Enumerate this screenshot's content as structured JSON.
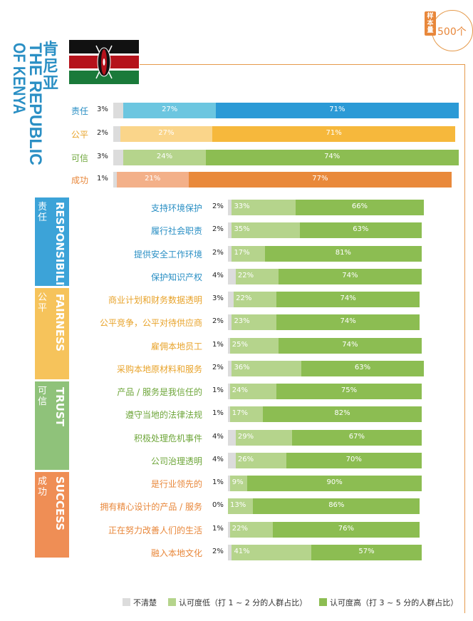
{
  "sample": {
    "label": "样本量",
    "count": "500个"
  },
  "title": {
    "cn": "肯尼亚",
    "en_line1": "THE REPUBLIC",
    "en_line2": "OF KENYA"
  },
  "colors": {
    "unclear": "#dcdcdc",
    "responsibility": "#2b9ad6",
    "responsibility_light": "#6cc6e0",
    "responsibility_cat": "#3ca3d8",
    "fairness": "#f6b83c",
    "fairness_light": "#fad58a",
    "fairness_cat": "#f6c35b",
    "trust": "#8cbd52",
    "trust_light": "#b5d48c",
    "trust_cat": "#8fc27a",
    "success": "#e9893b",
    "success_light": "#f3b089",
    "success_cat": "#ef8e55",
    "low": "#b5d48c",
    "high": "#8cbd52"
  },
  "chart_data": [
    {
      "type": "bar",
      "title": "肯尼亚 THE REPUBLIC OF KENYA",
      "stacked": true,
      "orientation": "horizontal",
      "categories": [
        "责任",
        "公平",
        "可信",
        "成功"
      ],
      "series": [
        {
          "name": "不清楚",
          "values": [
            3,
            2,
            3,
            1
          ]
        },
        {
          "name": "认可度低（打1～2分的人群占比）",
          "values": [
            27,
            27,
            24,
            21
          ]
        },
        {
          "name": "认可度高（打3～5分的人群占比）",
          "values": [
            71,
            71,
            74,
            77
          ]
        }
      ]
    },
    {
      "type": "bar",
      "stacked": true,
      "orientation": "horizontal",
      "groups": [
        {
          "name": "责任",
          "en": "RESPONSIBILITY",
          "items": [
            "支持环境保护",
            "履行社会职责",
            "提供安全工作环境",
            "保护知识产权"
          ]
        },
        {
          "name": "公平",
          "en": "FAIRNESS",
          "items": [
            "商业计划和财务数据透明",
            "公平竞争，公平对待供应商",
            "雇佣本地员工",
            "采购本地原材料和服务"
          ]
        },
        {
          "name": "可信",
          "en": "TRUST",
          "items": [
            "产品 / 服务是我信任的",
            "遵守当地的法律法规",
            "积极处理危机事件",
            "公司治理透明"
          ]
        },
        {
          "name": "成功",
          "en": "SUCCESS",
          "items": [
            "是行业领先的",
            "拥有精心设计的产品 / 服务",
            "正在努力改善人们的生活",
            "融入本地文化"
          ]
        }
      ],
      "categories": [
        "支持环境保护",
        "履行社会职责",
        "提供安全工作环境",
        "保护知识产权",
        "商业计划和财务数据透明",
        "公平竞争，公平对待供应商",
        "雇佣本地员工",
        "采购本地原材料和服务",
        "产品 / 服务是我信任的",
        "遵守当地的法律法规",
        "积极处理危机事件",
        "公司治理透明",
        "是行业领先的",
        "拥有精心设计的产品 / 服务",
        "正在努力改善人们的生活",
        "融入本地文化"
      ],
      "series": [
        {
          "name": "不清楚",
          "values": [
            2,
            2,
            2,
            4,
            3,
            2,
            1,
            2,
            1,
            1,
            4,
            4,
            1,
            0,
            1,
            2
          ]
        },
        {
          "name": "认可度低（打1～2分的人群占比）",
          "values": [
            33,
            35,
            17,
            22,
            22,
            23,
            25,
            36,
            24,
            17,
            29,
            26,
            9,
            13,
            22,
            41
          ]
        },
        {
          "name": "认可度高（打3～5分的人群占比）",
          "values": [
            66,
            63,
            81,
            74,
            74,
            74,
            74,
            63,
            75,
            82,
            67,
            70,
            90,
            86,
            76,
            57
          ]
        }
      ]
    }
  ],
  "legend": {
    "unclear": "不清楚",
    "low": "认可度低（打 1 ~ 2 分的人群占比）",
    "high": "认可度高（打 3 ~ 5 分的人群占比）"
  }
}
